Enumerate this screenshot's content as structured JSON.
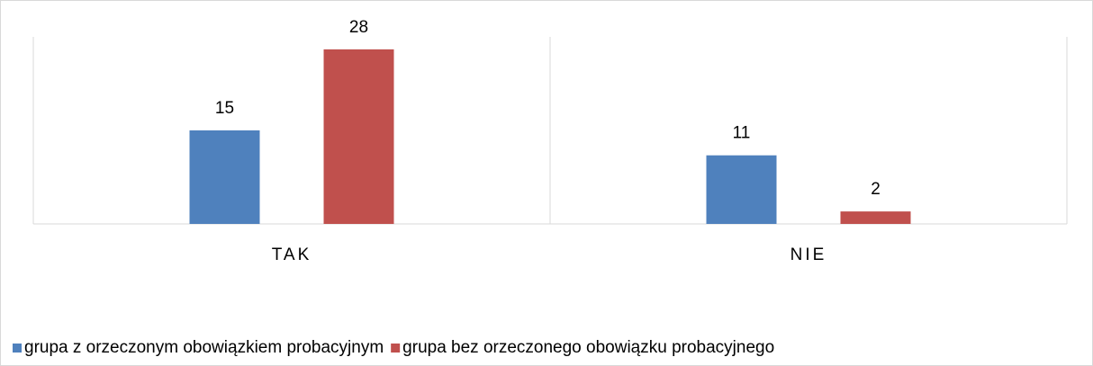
{
  "chart_data": {
    "type": "bar",
    "categories": [
      "TAK",
      "NIE"
    ],
    "series": [
      {
        "name": "grupa z orzeczonym obowiązkiem probacyjnym",
        "color": "#4f81bd",
        "values": [
          15,
          11
        ]
      },
      {
        "name": "grupa bez orzeczonego obowiązku probacyjnego",
        "color": "#c0504d",
        "values": [
          28,
          2
        ]
      }
    ],
    "ylim": [
      0,
      30
    ],
    "legend": "bottom"
  }
}
